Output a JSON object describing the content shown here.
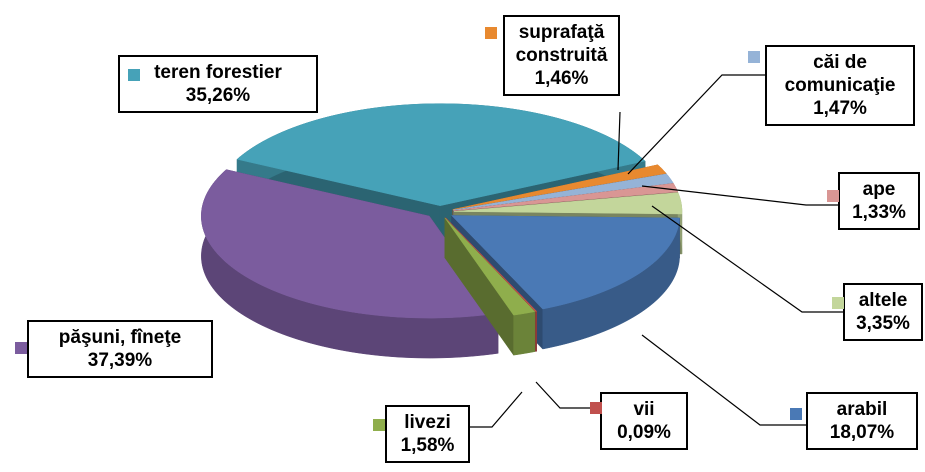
{
  "chart_data": {
    "type": "pie",
    "categories": [
      "suprafaţă construită",
      "căi de comunicaţie",
      "ape",
      "altele",
      "arabil",
      "vii",
      "livezi",
      "păşuni, fîneţe",
      "teren forestier"
    ],
    "values": [
      1.46,
      1.47,
      1.33,
      3.35,
      18.07,
      0.09,
      1.58,
      37.39,
      35.26
    ],
    "value_labels": [
      "1,46%",
      "1,47%",
      "1,33%",
      "3,35%",
      "18,07%",
      "0,09%",
      "1,58%",
      "37,39%",
      "35,26%"
    ],
    "colors": [
      "#e8892f",
      "#95b3d7",
      "#d99694",
      "#c3d69b",
      "#4a79b5",
      "#c0504d",
      "#8fae4c",
      "#7b5c9e",
      "#46a2b8"
    ],
    "exploded": true,
    "three_d": true
  }
}
